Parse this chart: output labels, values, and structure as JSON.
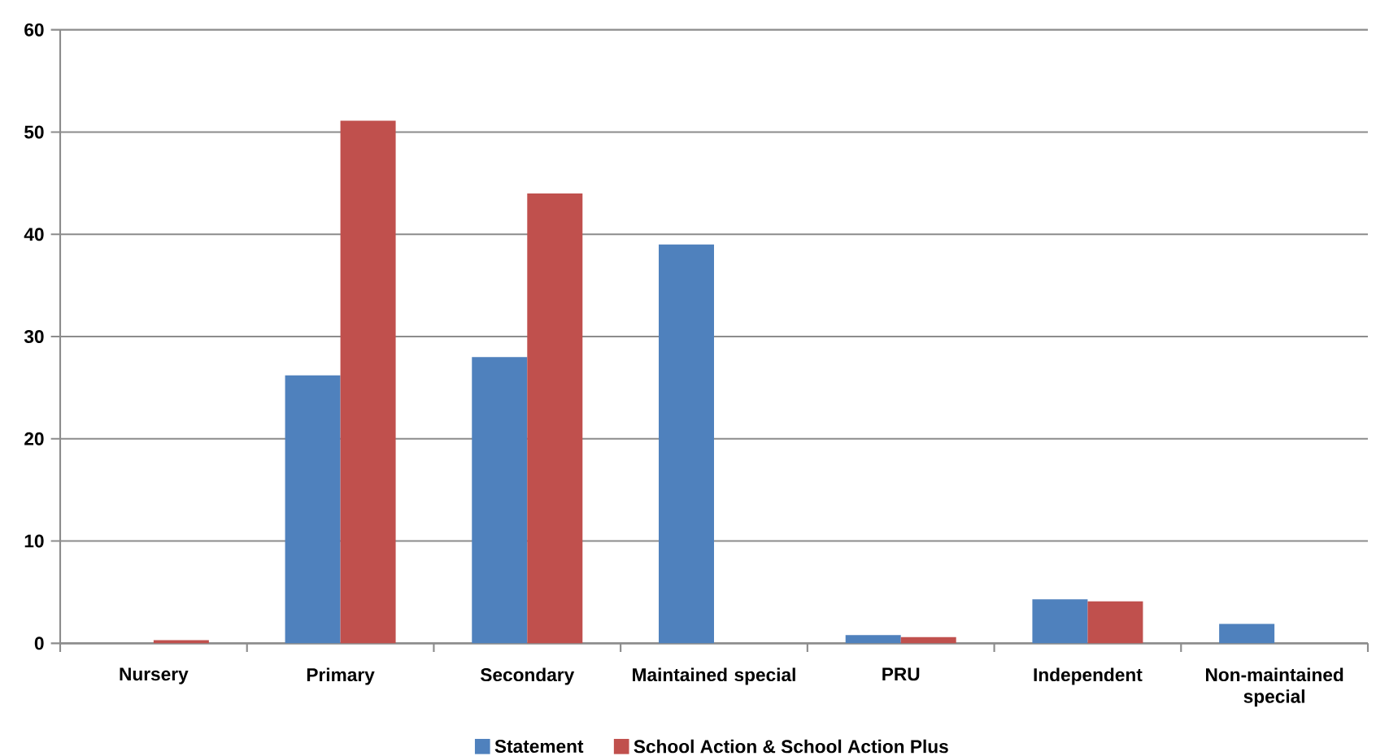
{
  "chart_data": {
    "type": "bar",
    "categories": [
      "Nursery",
      "Primary",
      "Secondary",
      "Maintained special",
      "PRU",
      "Independent",
      "Non-maintained special"
    ],
    "series": [
      {
        "name": "Statement",
        "color": "#4f81bd",
        "values": [
          0,
          26.2,
          28,
          39,
          0.8,
          4.3,
          1.9
        ]
      },
      {
        "name": "School Action & School Action Plus",
        "color": "#c0504d",
        "values": [
          0.3,
          51.1,
          44,
          0,
          0.6,
          4.1,
          0
        ]
      }
    ],
    "ylim": [
      0,
      60
    ],
    "yticks": [
      0,
      10,
      20,
      30,
      40,
      50,
      60
    ],
    "grid": "y",
    "legend": "bottom"
  }
}
